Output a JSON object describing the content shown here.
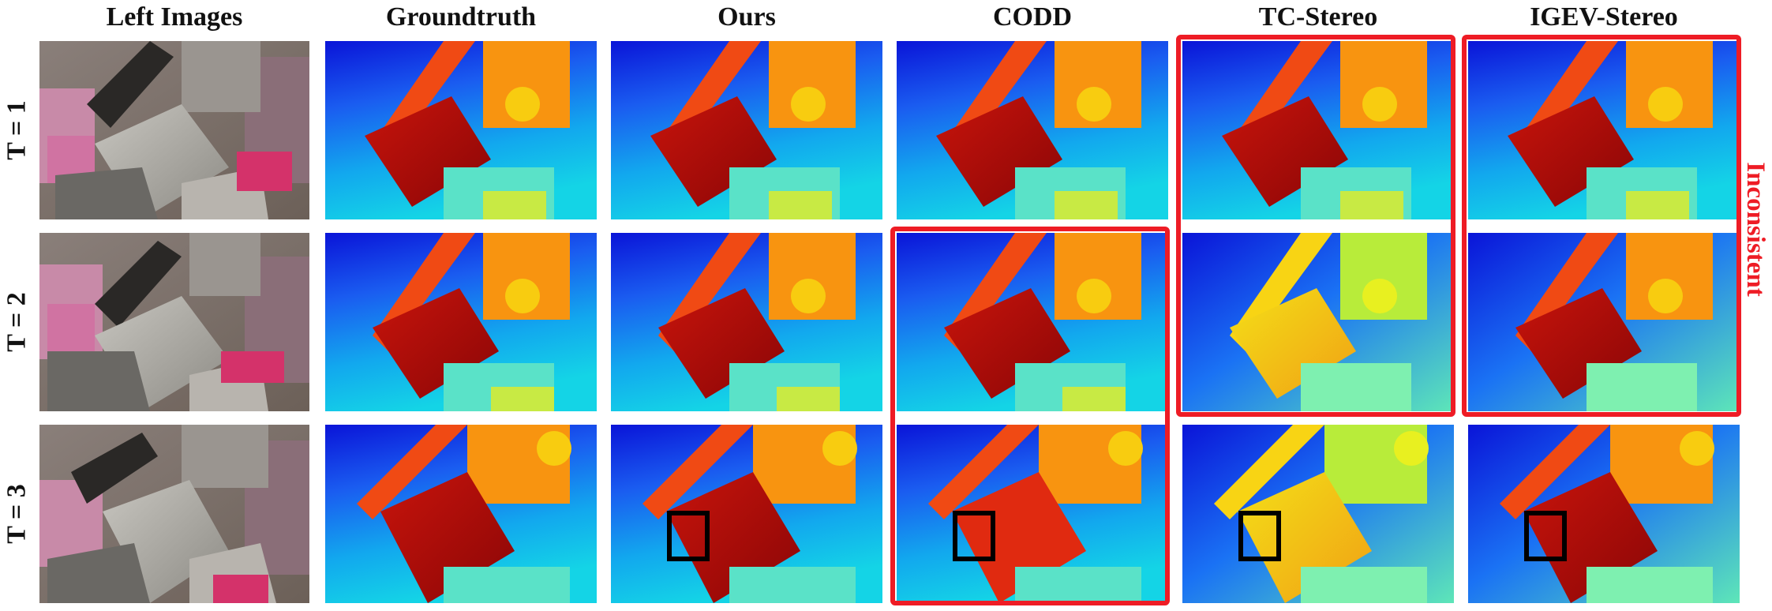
{
  "columns": {
    "left_images": "Left Images",
    "groundtruth": "Groundtruth",
    "ours": "Ours",
    "codd": "CODD",
    "tc_stereo": "TC-Stereo",
    "igev_stereo": "IGEV-Stereo"
  },
  "rows": {
    "t1": "T = 1",
    "t2": "T = 2",
    "t3": "T = 3"
  },
  "annotation": {
    "inconsistent": "Inconsistent"
  },
  "colors": {
    "highlight_box": "#ee1c25",
    "zoom_box": "#000000",
    "colormap": "jet"
  }
}
